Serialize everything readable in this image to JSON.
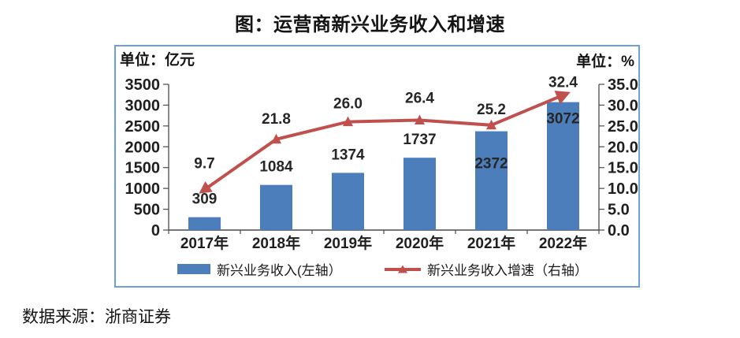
{
  "source": "数据来源：浙商证券",
  "colors": {
    "bar": "#4D7EBC",
    "line": "#C0504D",
    "border": "#6EA0D7",
    "axis": "#4a4a4a",
    "text": "#1f1f1f"
  },
  "chart_data": {
    "type": "bar+line",
    "title": "图：运营商新兴业务收入和增速",
    "categories": [
      "2017年",
      "2018年",
      "2019年",
      "2020年",
      "2021年",
      "2022年"
    ],
    "series": [
      {
        "name": "新兴业务收入(左轴）",
        "type": "bar",
        "axis": "left",
        "color": "#4D7EBC",
        "values": [
          309,
          1084,
          1374,
          1737,
          2372,
          3072
        ]
      },
      {
        "name": "新兴业务收入增速（右轴）",
        "type": "line",
        "axis": "right",
        "color": "#C0504D",
        "values": [
          9.7,
          21.8,
          26.0,
          26.4,
          25.2,
          32.4
        ]
      }
    ],
    "left_axis": {
      "unit": "单位：亿元",
      "min": 0,
      "max": 3500,
      "step": 500
    },
    "right_axis": {
      "unit": "单位：%",
      "min": 0,
      "max": 35,
      "step": 5
    },
    "grid": false,
    "legend_position": "bottom",
    "bar_label_offset": [
      -17,
      -17,
      -17,
      -17,
      47,
      27
    ],
    "line_label_offset": [
      -27,
      -20,
      -17,
      -22,
      -14,
      -10
    ]
  }
}
